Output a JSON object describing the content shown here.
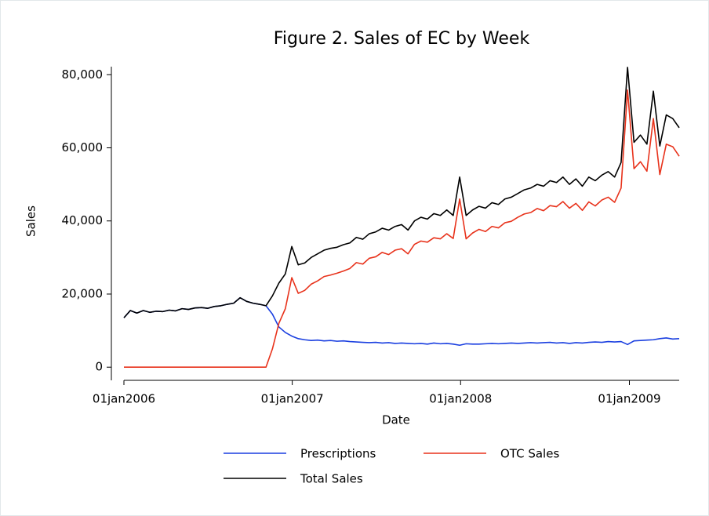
{
  "chart_data": {
    "type": "line",
    "title": "Figure 2. Sales of EC by Week",
    "x_label": "Date",
    "y_label": "Sales",
    "x": [
      "2006-01-01",
      "2006-01-15",
      "2006-01-29",
      "2006-02-12",
      "2006-02-26",
      "2006-03-12",
      "2006-03-26",
      "2006-04-09",
      "2006-04-23",
      "2006-05-07",
      "2006-05-21",
      "2006-06-04",
      "2006-06-18",
      "2006-07-02",
      "2006-07-16",
      "2006-07-30",
      "2006-08-13",
      "2006-08-27",
      "2006-09-10",
      "2006-09-24",
      "2006-10-08",
      "2006-10-22",
      "2006-11-05",
      "2006-11-19",
      "2006-12-03",
      "2006-12-17",
      "2006-12-31",
      "2007-01-14",
      "2007-01-28",
      "2007-02-11",
      "2007-02-25",
      "2007-03-11",
      "2007-03-25",
      "2007-04-08",
      "2007-04-22",
      "2007-05-06",
      "2007-05-20",
      "2007-06-03",
      "2007-06-17",
      "2007-07-01",
      "2007-07-15",
      "2007-07-29",
      "2007-08-12",
      "2007-08-26",
      "2007-09-09",
      "2007-09-23",
      "2007-10-07",
      "2007-10-21",
      "2007-11-04",
      "2007-11-18",
      "2007-12-02",
      "2007-12-16",
      "2007-12-30",
      "2008-01-13",
      "2008-01-27",
      "2008-02-10",
      "2008-02-24",
      "2008-03-09",
      "2008-03-23",
      "2008-04-06",
      "2008-04-20",
      "2008-05-04",
      "2008-05-18",
      "2008-06-01",
      "2008-06-15",
      "2008-06-29",
      "2008-07-13",
      "2008-07-27",
      "2008-08-10",
      "2008-08-24",
      "2008-09-07",
      "2008-09-21",
      "2008-10-05",
      "2008-10-19",
      "2008-11-02",
      "2008-11-16",
      "2008-11-30",
      "2008-12-14",
      "2008-12-28",
      "2009-01-11",
      "2009-01-25",
      "2009-02-08",
      "2009-02-22",
      "2009-03-08",
      "2009-03-22",
      "2009-04-05",
      "2009-04-19"
    ],
    "series": [
      {
        "name": "Prescriptions",
        "color": "#1a3fe0",
        "values": [
          13500,
          15500,
          14800,
          15500,
          15000,
          15300,
          15200,
          15600,
          15400,
          16000,
          15800,
          16200,
          16300,
          16100,
          16600,
          16800,
          17200,
          17500,
          19000,
          18000,
          17500,
          17200,
          16800,
          14500,
          11000,
          9500,
          8500,
          7800,
          7500,
          7300,
          7400,
          7200,
          7300,
          7100,
          7200,
          7000,
          6900,
          6800,
          6700,
          6800,
          6600,
          6700,
          6500,
          6600,
          6500,
          6400,
          6500,
          6300,
          6600,
          6400,
          6500,
          6300,
          6000,
          6400,
          6300,
          6300,
          6400,
          6500,
          6400,
          6500,
          6600,
          6500,
          6600,
          6700,
          6600,
          6700,
          6800,
          6600,
          6700,
          6500,
          6700,
          6600,
          6800,
          6900,
          6800,
          7000,
          6900,
          7000,
          6200,
          7200,
          7300,
          7400,
          7500,
          7800,
          8000,
          7700,
          7800
        ]
      },
      {
        "name": "OTC Sales",
        "color": "#e8321b",
        "values": [
          0,
          0,
          0,
          0,
          0,
          0,
          0,
          0,
          0,
          0,
          0,
          0,
          0,
          0,
          0,
          0,
          0,
          0,
          0,
          0,
          0,
          0,
          0,
          5000,
          12000,
          16000,
          24500,
          20200,
          21000,
          22700,
          23600,
          24800,
          25200,
          25700,
          26300,
          27000,
          28600,
          28200,
          29800,
          30200,
          31400,
          30800,
          32000,
          32400,
          31000,
          33600,
          34500,
          34200,
          35400,
          35100,
          36500,
          35200,
          46000,
          35100,
          36700,
          37700,
          37100,
          38500,
          38100,
          39500,
          39900,
          41000,
          41900,
          42300,
          43400,
          42800,
          44200,
          43900,
          45300,
          43500,
          44800,
          42900,
          45200,
          44100,
          45700,
          46500,
          45100,
          49000,
          75800,
          54300,
          56200,
          53600,
          68000,
          52700,
          61000,
          60300,
          57700
        ]
      },
      {
        "name": "Total Sales",
        "color": "#000000",
        "values": [
          13500,
          15500,
          14800,
          15500,
          15000,
          15300,
          15200,
          15600,
          15400,
          16000,
          15800,
          16200,
          16300,
          16100,
          16600,
          16800,
          17200,
          17500,
          19000,
          18000,
          17500,
          17200,
          16800,
          19500,
          23000,
          25500,
          33000,
          28000,
          28500,
          30000,
          31000,
          32000,
          32500,
          32800,
          33500,
          34000,
          35500,
          35000,
          36500,
          37000,
          38000,
          37500,
          38500,
          39000,
          37500,
          40000,
          41000,
          40500,
          42000,
          41500,
          43000,
          41500,
          52000,
          41500,
          43000,
          44000,
          43500,
          45000,
          44500,
          46000,
          46500,
          47500,
          48500,
          49000,
          50000,
          49500,
          51000,
          50500,
          52000,
          50000,
          51500,
          49500,
          52000,
          51000,
          52500,
          53500,
          52000,
          56000,
          82000,
          61500,
          63500,
          61000,
          75500,
          60500,
          69000,
          68000,
          65500
        ]
      }
    ],
    "xlim": [
      "2006-01-01",
      "2009-04-19"
    ],
    "xticks": [
      {
        "value": "2006-01-01",
        "label": "01jan2006"
      },
      {
        "value": "2007-01-01",
        "label": "01jan2007"
      },
      {
        "value": "2008-01-01",
        "label": "01jan2008"
      },
      {
        "value": "2009-01-01",
        "label": "01jan2009"
      }
    ],
    "ylim": [
      -3600,
      82200
    ],
    "yticks": [
      0,
      {
        "value": 20000,
        "label": "20,000"
      },
      {
        "value": 40000,
        "label": "40,000"
      },
      {
        "value": 60000,
        "label": "60,000"
      },
      {
        "value": 80000,
        "label": "80,000"
      }
    ],
    "grid": false,
    "legend": "bottom"
  }
}
